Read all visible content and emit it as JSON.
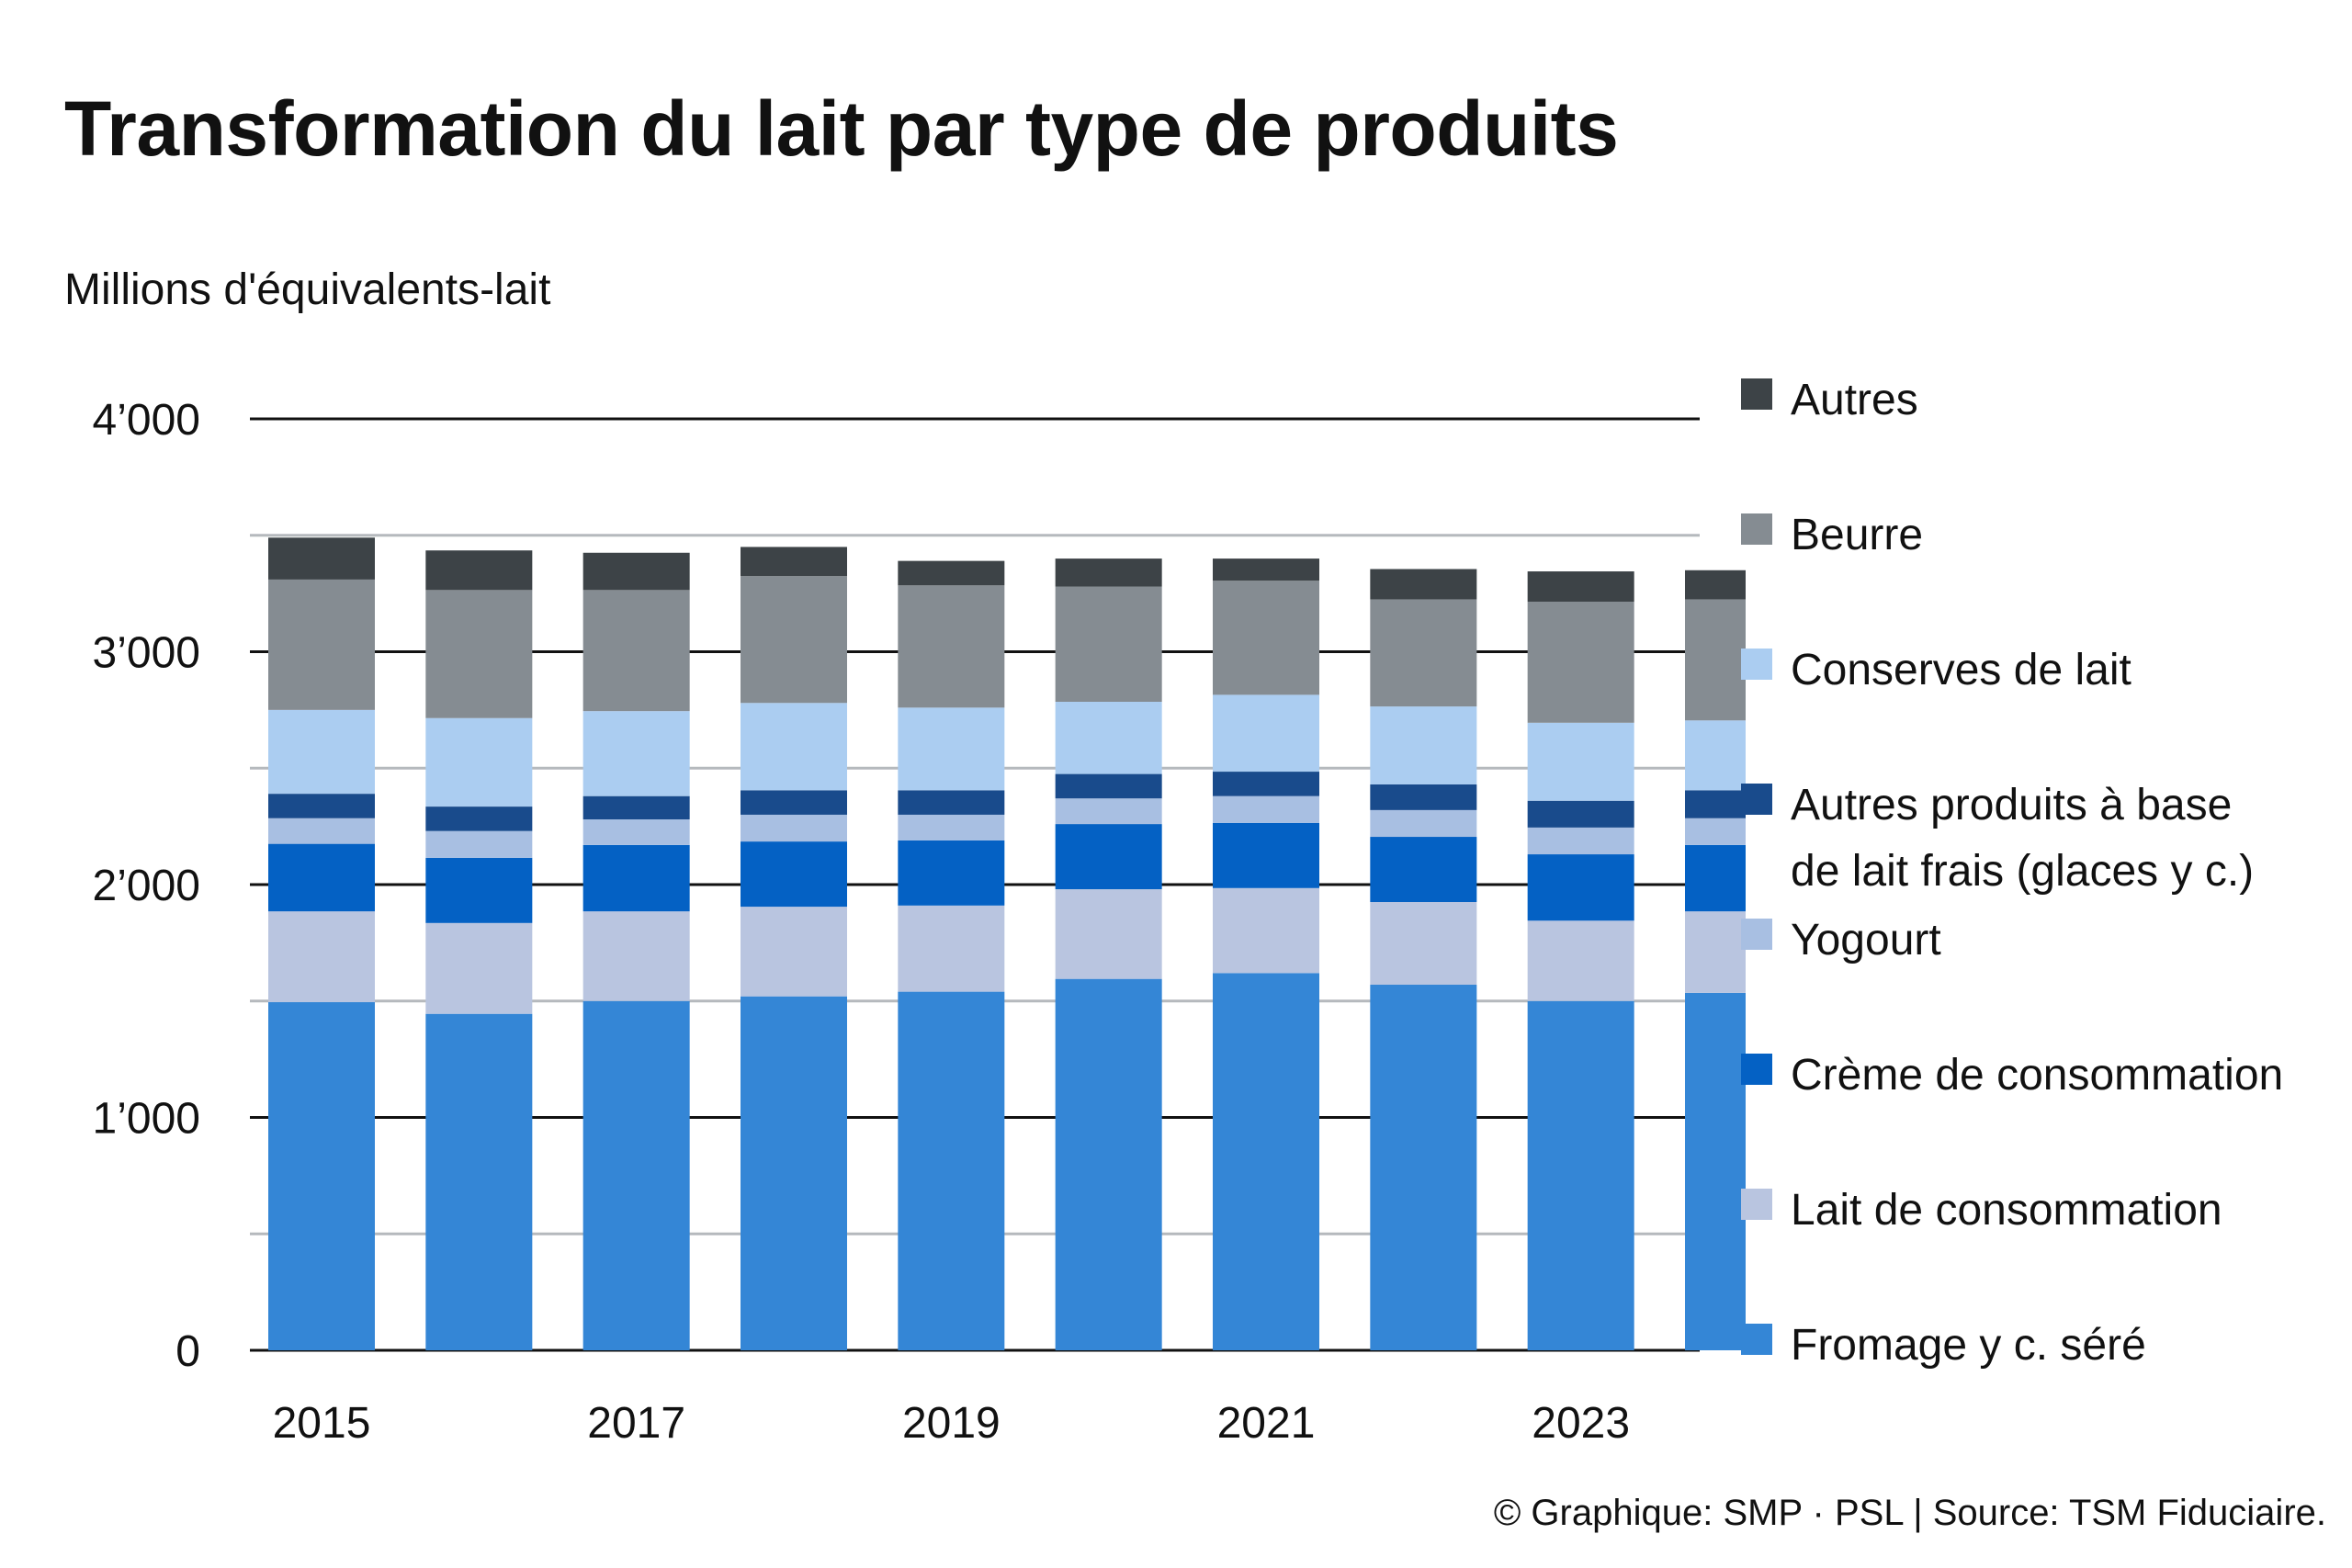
{
  "title": "Transformation du lait par type de produits",
  "unit_label": "Millions d'équivalents-lait",
  "source": "© Graphique: SMP · PSL | Source: TSM Fiduciaire.",
  "chart_data": {
    "type": "bar",
    "stacked": true,
    "title": "Transformation du lait par type de produits",
    "ylabel": "Millions d'équivalents-lait",
    "xlabel": "",
    "ylim": [
      0,
      4000
    ],
    "yticks": [
      0,
      1000,
      2000,
      3000,
      4000
    ],
    "ytick_labels": [
      "0",
      "1’000",
      "2’000",
      "3’000",
      "4’000"
    ],
    "x_tick_labels": [
      "2015",
      "",
      "2017",
      "",
      "2019",
      "",
      "2021",
      "",
      "2023",
      ""
    ],
    "categories": [
      "2015",
      "2016",
      "2017",
      "2018",
      "2019",
      "2020",
      "2021",
      "2022",
      "2023",
      "2024"
    ],
    "grid": true,
    "legend_position": "right",
    "series": [
      {
        "name": "Fromage y c. séré",
        "color": "#3486D6",
        "values": [
          1495,
          1445,
          1500,
          1520,
          1540,
          1595,
          1620,
          1570,
          1500,
          1535
        ]
      },
      {
        "name": "Lait de consommation",
        "color": "#B9C5E0",
        "values": [
          390,
          390,
          385,
          385,
          370,
          385,
          365,
          355,
          345,
          350
        ]
      },
      {
        "name": "Crème de consommation",
        "color": "#0461C4",
        "values": [
          290,
          280,
          285,
          280,
          280,
          280,
          280,
          280,
          285,
          285
        ]
      },
      {
        "name": "Yogourt",
        "color": "#A8BFE2",
        "values": [
          110,
          115,
          110,
          115,
          110,
          110,
          115,
          115,
          115,
          115
        ]
      },
      {
        "name": "Autres produits à base de lait frais (glaces y c.)",
        "color": "#194B8C",
        "values": [
          105,
          105,
          100,
          105,
          105,
          105,
          105,
          110,
          115,
          120
        ]
      },
      {
        "name": "Conserves de lait",
        "color": "#ABCDF1",
        "values": [
          360,
          380,
          365,
          375,
          355,
          310,
          330,
          335,
          335,
          300
        ]
      },
      {
        "name": "Beurre",
        "color": "#858C92",
        "values": [
          560,
          550,
          520,
          545,
          525,
          495,
          490,
          460,
          520,
          520
        ]
      },
      {
        "name": "Autres",
        "color": "#3D4347",
        "values": [
          180,
          170,
          160,
          125,
          105,
          120,
          95,
          130,
          130,
          125
        ]
      }
    ]
  }
}
